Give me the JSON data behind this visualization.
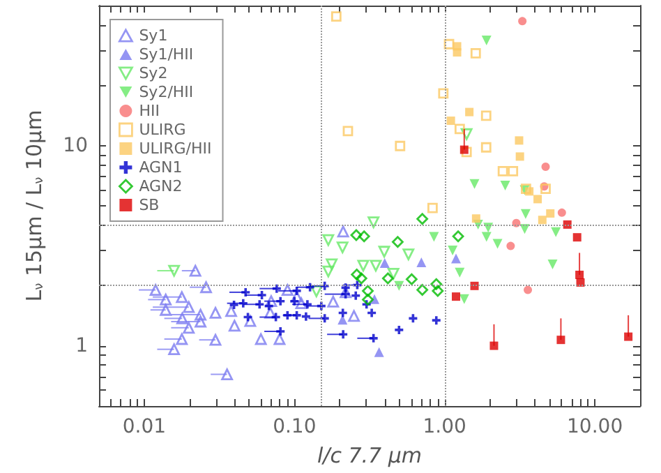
{
  "chart_data": {
    "type": "scatter",
    "xlabel": "l/c 7.7 μm",
    "ylabel": "L$_{ν}$ 15μm / L$_{ν}$ 10μm",
    "log": "xy",
    "xlim": [
      0.005,
      20
    ],
    "ylim": [
      0.5,
      50
    ],
    "xticks": [
      {
        "value": 0.005,
        "label": null
      },
      {
        "value": 0.006,
        "label": null
      },
      {
        "value": 0.007,
        "label": null
      },
      {
        "value": 0.008,
        "label": null
      },
      {
        "value": 0.009,
        "label": null
      },
      {
        "value": 0.01,
        "label": "0.01"
      },
      {
        "value": 0.02,
        "label": null
      },
      {
        "value": 0.03,
        "label": null
      },
      {
        "value": 0.04,
        "label": null
      },
      {
        "value": 0.05,
        "label": null
      },
      {
        "value": 0.06,
        "label": null
      },
      {
        "value": 0.07,
        "label": null
      },
      {
        "value": 0.08,
        "label": null
      },
      {
        "value": 0.09,
        "label": null
      },
      {
        "value": 0.1,
        "label": "0.10"
      },
      {
        "value": 0.2,
        "label": null
      },
      {
        "value": 0.3,
        "label": null
      },
      {
        "value": 0.4,
        "label": null
      },
      {
        "value": 0.5,
        "label": null
      },
      {
        "value": 0.6,
        "label": null
      },
      {
        "value": 0.7,
        "label": null
      },
      {
        "value": 0.8,
        "label": null
      },
      {
        "value": 0.9,
        "label": null
      },
      {
        "value": 1,
        "label": "1.00"
      },
      {
        "value": 2,
        "label": null
      },
      {
        "value": 3,
        "label": null
      },
      {
        "value": 4,
        "label": null
      },
      {
        "value": 5,
        "label": null
      },
      {
        "value": 6,
        "label": null
      },
      {
        "value": 7,
        "label": null
      },
      {
        "value": 8,
        "label": null
      },
      {
        "value": 9,
        "label": null
      },
      {
        "value": 10,
        "label": "10.00"
      },
      {
        "value": 20,
        "label": null
      }
    ],
    "yticks": [
      {
        "value": 0.5,
        "label": null
      },
      {
        "value": 0.6,
        "label": null
      },
      {
        "value": 0.7,
        "label": null
      },
      {
        "value": 0.8,
        "label": null
      },
      {
        "value": 0.9,
        "label": null
      },
      1,
      {
        "value": 2,
        "label": null
      },
      {
        "value": 3,
        "label": null
      },
      {
        "value": 4,
        "label": null
      },
      {
        "value": 5,
        "label": null
      },
      {
        "value": 6,
        "label": null
      },
      {
        "value": 7,
        "label": null
      },
      {
        "value": 8,
        "label": null
      },
      {
        "value": 9,
        "label": null
      },
      10,
      {
        "value": 20,
        "label": null
      },
      {
        "value": 30,
        "label": null
      },
      {
        "value": 40,
        "label": null
      },
      {
        "value": 50,
        "label": null
      }
    ],
    "grid": false,
    "legend": "top left",
    "ref_lines": [
      {
        "axis": "x",
        "value": 0.15,
        "color": "#999999",
        "line_style": "dotted"
      },
      {
        "axis": "x",
        "value": 1,
        "color": "#999999",
        "line_style": "dotted"
      },
      {
        "axis": "y",
        "value": 2,
        "color": "#999999",
        "line_style": "dotted"
      },
      {
        "axis": "y",
        "value": 4,
        "color": "#999999",
        "line_style": "dotted"
      }
    ],
    "series": [
      {
        "name": "Sy1",
        "color": "#7b7bf0",
        "marker": "triangle-open",
        "x": [
          0.0219,
          0.0119,
          0.0258,
          0.0178,
          0.0139,
          0.0198,
          0.0139,
          0.0237,
          0.0179,
          0.0237,
          0.0198,
          0.0298,
          0.0379,
          0.0399,
          0.0178,
          0.0298,
          0.0158,
          0.0598,
          0.0796,
          0.0356,
          0.0508,
          0.07,
          0.069,
          0.0899,
          0.111,
          0.1036,
          0.181,
          0.211,
          0.219,
          0.249
        ],
        "values": [
          2.37,
          1.9,
          1.96,
          1.75,
          1.7,
          1.56,
          1.51,
          1.43,
          1.37,
          1.32,
          1.23,
          1.46,
          1.49,
          1.26,
          1.08,
          1.07,
          0.96,
          1.08,
          1.08,
          0.72,
          1.33,
          1.67,
          1.46,
          1.9,
          1.63,
          1.76,
          1.66,
          3.72,
          1.85,
          1.41
        ],
        "xerrors": [
          [
            0.0178,
            0.0219
          ],
          [
            0.0092,
            0.0119
          ],
          [
            0.0201,
            0.0258
          ],
          [
            0.0114,
            0.0178
          ],
          [
            0.0106,
            0.0139
          ],
          [
            0.0114,
            0.0198
          ],
          [
            0.011,
            0.0139
          ],
          [
            0.0151,
            0.0237
          ],
          [
            0.0136,
            0.0179
          ],
          [
            0.0151,
            0.0237
          ],
          [
            0.0151,
            0.0198
          ],
          null,
          null,
          null,
          [
            0.0136,
            0.0178
          ],
          [
            0.0232,
            0.0298
          ],
          [
            0.0122,
            0.0158
          ],
          null,
          null,
          [
            0.0277,
            0.0356
          ],
          null,
          null,
          null,
          null,
          null,
          null,
          null,
          null,
          null,
          null
        ]
      },
      {
        "name": "Sy1/HII",
        "color": "#7b7bf0",
        "marker": "triangle",
        "x": [
          0.209,
          0.341,
          0.399,
          0.7,
          1.19,
          0.366
        ],
        "values": [
          1.35,
          1.71,
          2.59,
          2.61,
          2.73,
          0.93
        ]
      },
      {
        "name": "Sy2",
        "color": "#66e866",
        "marker": "triangle-down-open",
        "x": [
          0.0158,
          0.14,
          0.168,
          0.209,
          0.336,
          0.177,
          0.168,
          0.287,
          0.348,
          0.396,
          0.456,
          0.574,
          1.4
        ],
        "values": [
          2.37,
          1.87,
          3.37,
          3.1,
          4.14,
          2.55,
          2.35,
          2.51,
          2.51,
          2.95,
          2.29,
          2.86,
          11.4
        ],
        "xerrors": [
          [
            0.0122,
            0.0158
          ],
          null,
          null,
          null,
          null,
          null,
          null,
          null,
          null,
          null,
          null,
          null,
          null
        ]
      },
      {
        "name": "Sy2/HII",
        "color": "#66e866",
        "marker": "triangle-down",
        "x": [
          1.9,
          1.58,
          2.53,
          3.41,
          3.46,
          3.41,
          1.95,
          1.9,
          2.25,
          5.5,
          5.23,
          0.849,
          1.13,
          1.26,
          0.497,
          1.35,
          1.67
        ],
        "values": [
          33.5,
          6.42,
          6.31,
          5.99,
          4.55,
          3.83,
          3.89,
          3.5,
          3.23,
          3.69,
          2.55,
          3.5,
          2.99,
          2.32,
          1.99,
          1.71,
          4.03
        ]
      },
      {
        "name": "HII",
        "color": "#f77272",
        "marker": "circle",
        "x": [
          3.29,
          4.7,
          4.6,
          6.03,
          3.0,
          2.75,
          3.58
        ],
        "values": [
          41.8,
          7.84,
          6.25,
          4.62,
          4.1,
          3.15,
          1.9
        ]
      },
      {
        "name": "ULIRG",
        "color": "#fbc862",
        "marker": "square-open",
        "x": [
          0.19,
          0.227,
          0.505,
          0.831,
          0.98,
          1.07,
          1.61,
          1.89,
          1.26,
          1.4,
          1.89,
          2.44,
          2.85,
          3.48,
          4.7
        ],
        "values": [
          44.1,
          11.8,
          9.95,
          4.88,
          18.2,
          32.1,
          28.9,
          14.1,
          12.1,
          9.29,
          9.79,
          7.45,
          7.45,
          6.08,
          6.08
        ]
      },
      {
        "name": "ULIRG/HII",
        "color": "#fbc862",
        "marker": "square",
        "x": [
          1.21,
          1.21,
          1.46,
          1.1,
          3.13,
          3.17,
          3.66,
          4.16,
          5.05,
          4.47,
          1.62
        ],
        "values": [
          31.3,
          29.2,
          14.7,
          13.3,
          10.6,
          8.81,
          5.9,
          5.4,
          4.58,
          4.25,
          4.32
        ]
      },
      {
        "name": "AGN1",
        "color": "#0000cc",
        "marker": "cross",
        "x": [
          0.0473,
          0.0607,
          0.0762,
          0.1036,
          0.159,
          0.127,
          0.0456,
          0.0396,
          0.0586,
          0.0676,
          0.0807,
          0.1,
          0.122,
          0.151,
          0.262,
          0.219,
          0.219,
          0.256,
          0.302,
          0.21,
          0.327,
          0.0899,
          0.1194,
          0.049,
          0.0752,
          0.1036,
          0.159,
          0.0807,
          0.211,
          0.336,
          0.497,
          0.616,
          0.88
        ],
        "values": [
          1.85,
          1.79,
          1.93,
          1.88,
          1.99,
          1.96,
          1.63,
          1.6,
          1.61,
          1.58,
          1.67,
          1.67,
          1.61,
          1.58,
          2.01,
          1.95,
          1.81,
          1.78,
          1.61,
          1.46,
          1.46,
          1.42,
          1.4,
          1.39,
          1.39,
          1.42,
          1.37,
          1.18,
          1.14,
          1.09,
          1.2,
          1.37,
          1.34
        ],
        "xerrors": [
          [
            0.0369,
            0.0473
          ],
          [
            0.0473,
            0.0607
          ],
          [
            0.0586,
            0.0762
          ],
          [
            0.078,
            0.1036
          ],
          [
            0.124,
            0.159
          ],
          [
            0.1036,
            0.127
          ],
          [
            0.0356,
            0.0456
          ],
          null,
          [
            0.0456,
            0.0586
          ],
          null,
          [
            0.063,
            0.0807
          ],
          null,
          [
            0.0966,
            0.122
          ],
          [
            0.119,
            0.151
          ],
          [
            0.211,
            0.262
          ],
          null,
          [
            0.159,
            0.219
          ],
          null,
          null,
          null,
          null,
          null,
          null,
          null,
          [
            0.0586,
            0.0752
          ],
          [
            0.0837,
            0.1036
          ],
          [
            0.124,
            0.159
          ],
          [
            0.063,
            0.0807
          ],
          [
            0.165,
            0.211
          ],
          [
            0.262,
            0.336
          ],
          null,
          null,
          null
        ]
      },
      {
        "name": "AGN2",
        "color": "#00bb00",
        "marker": "diamond-open",
        "x": [
          0.71,
          0.487,
          0.258,
          0.291,
          1.23,
          0.26,
          0.279,
          0.419,
          0.603,
          0.71,
          0.88,
          0.9,
          0.308,
          0.308
        ],
        "values": [
          4.3,
          3.3,
          3.57,
          3.52,
          3.52,
          2.27,
          2.17,
          2.17,
          2.15,
          1.9,
          2.03,
          1.88,
          1.88,
          1.7
        ]
      },
      {
        "name": "SB",
        "color": "#dd0000",
        "marker": "square",
        "x": [
          1.35,
          6.56,
          7.62,
          1.58,
          1.19,
          8.02,
          7.9,
          2.13,
          5.94,
          16.7
        ],
        "values": [
          9.53,
          4.03,
          3.48,
          1.99,
          1.76,
          2.07,
          2.26,
          1.0,
          1.07,
          1.11
        ],
        "errors": [
          [
            9.53,
            12.1
          ],
          null,
          null,
          null,
          null,
          null,
          [
            2.26,
            2.91
          ],
          [
            1.0,
            1.28
          ],
          [
            1.07,
            1.37
          ],
          [
            1.11,
            1.42
          ]
        ]
      }
    ]
  }
}
